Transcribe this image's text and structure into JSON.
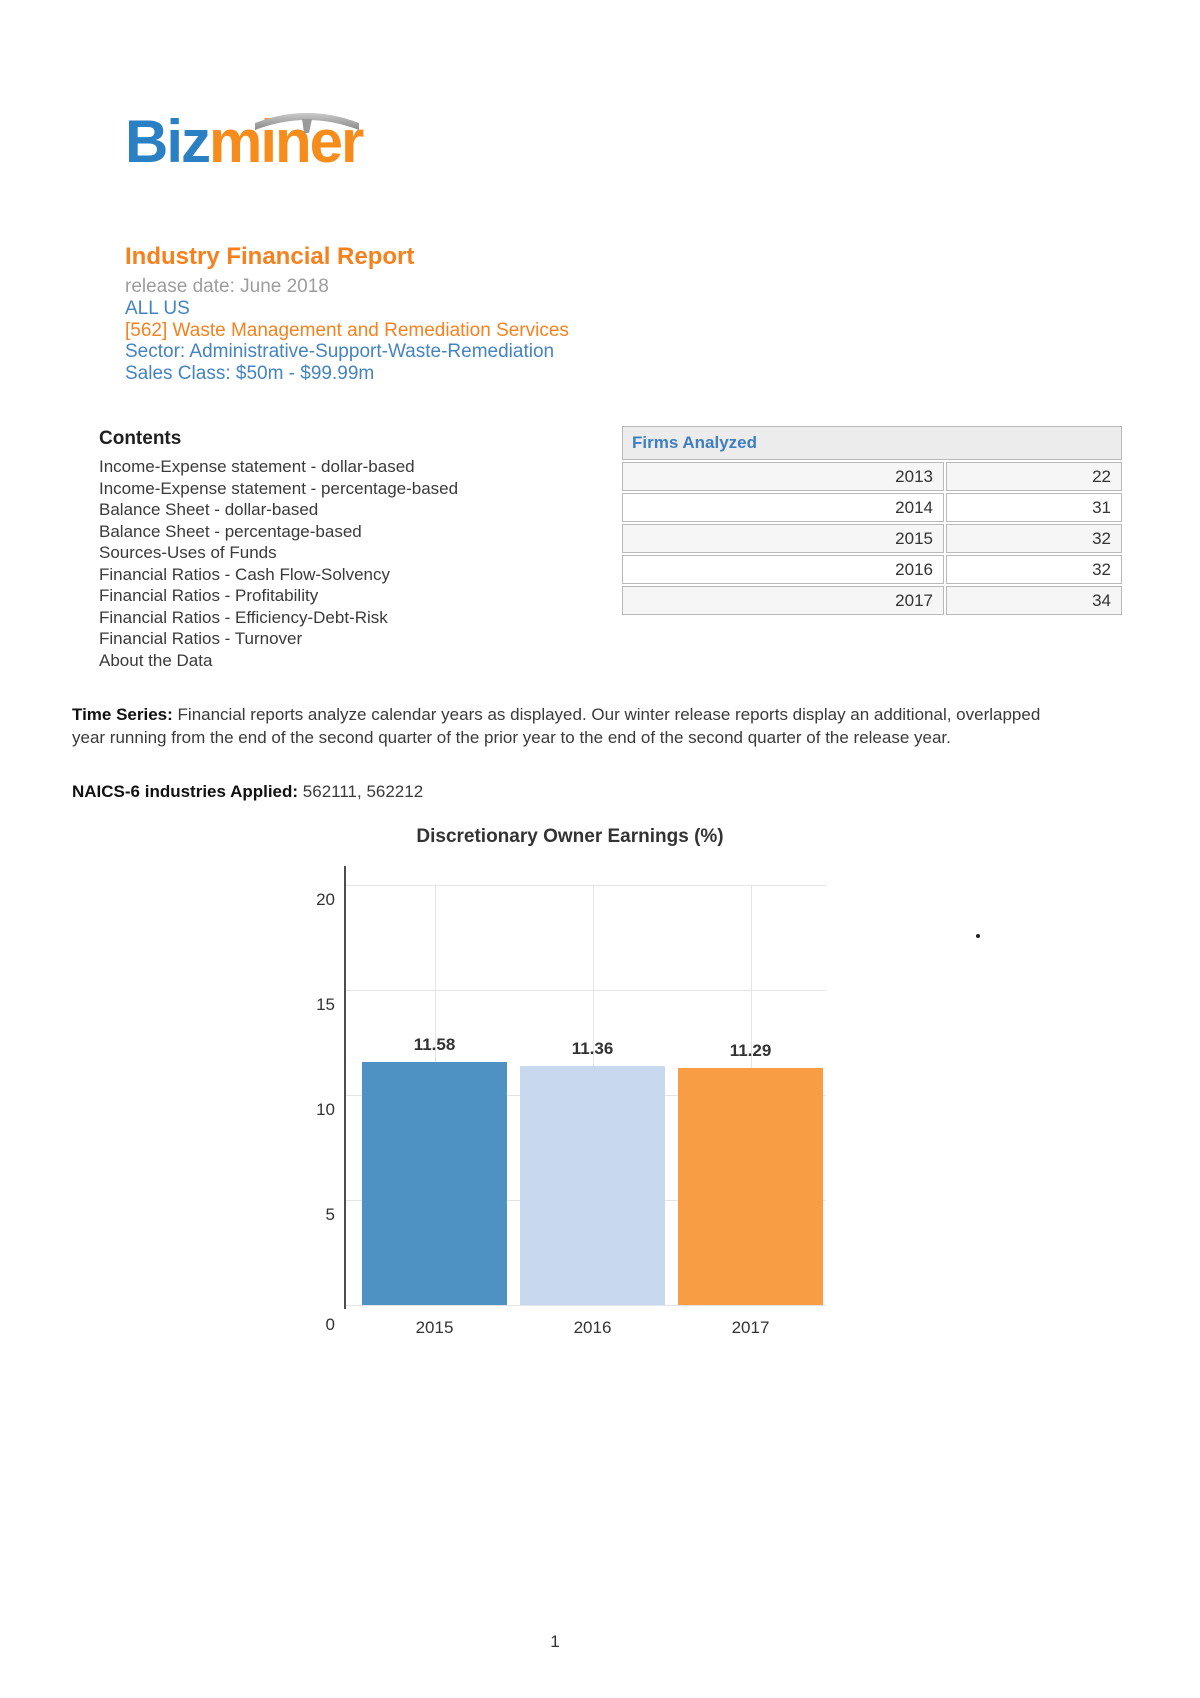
{
  "logo": {
    "part1": "Biz",
    "part2": "miner"
  },
  "header": {
    "title": "Industry Financial Report",
    "release_date": "release date: June 2018",
    "region": "ALL US",
    "industry": "[562] Waste Management and Remediation Services",
    "sector": "Sector: Administrative-Support-Waste-Remediation",
    "sales_class": "Sales Class: $50m - $99.99m"
  },
  "contents": {
    "heading": "Contents",
    "items": [
      "Income-Expense statement - dollar-based",
      "Income-Expense statement - percentage-based",
      "Balance Sheet - dollar-based",
      "Balance Sheet - percentage-based",
      "Sources-Uses of Funds",
      "Financial Ratios - Cash Flow-Solvency",
      "Financial Ratios - Profitability",
      "Financial Ratios - Efficiency-Debt-Risk",
      "Financial Ratios - Turnover",
      "About the Data"
    ]
  },
  "firms_table": {
    "header": "Firms Analyzed",
    "rows": [
      {
        "year": "2013",
        "count": "22"
      },
      {
        "year": "2014",
        "count": "31"
      },
      {
        "year": "2015",
        "count": "32"
      },
      {
        "year": "2016",
        "count": "32"
      },
      {
        "year": "2017",
        "count": "34"
      }
    ]
  },
  "time_series": {
    "label": "Time Series:",
    "text": "Financial reports analyze calendar years as displayed. Our winter release reports display an additional, overlapped year running from the end of the second quarter of the prior year to the end of the second quarter of the release year."
  },
  "naics": {
    "label": "NAICS-6 industries Applied:",
    "value": "562111, 562212"
  },
  "chart_data": {
    "type": "bar",
    "title": "Discretionary Owner Earnings (%)",
    "categories": [
      "2015",
      "2016",
      "2017"
    ],
    "values": [
      11.58,
      11.36,
      11.29
    ],
    "value_labels": [
      "11.58",
      "11.36",
      "11.29"
    ],
    "bar_colors": [
      "#4e92c4",
      "#c8d9ef",
      "#f99d45"
    ],
    "xlabel": "",
    "ylabel": "",
    "ylim": [
      0,
      20
    ],
    "yticks": [
      0,
      5,
      10,
      15,
      20
    ],
    "grid": true,
    "legend": false
  },
  "footer": {
    "page_number": "1"
  },
  "colors": {
    "logo_blue": "#2b7fc3",
    "logo_orange": "#f68c1c",
    "heading_orange": "#f5821f",
    "link_blue": "#4484c0",
    "muted_gray": "#9d9d9d",
    "table_header_blue": "#3f7fc1"
  }
}
